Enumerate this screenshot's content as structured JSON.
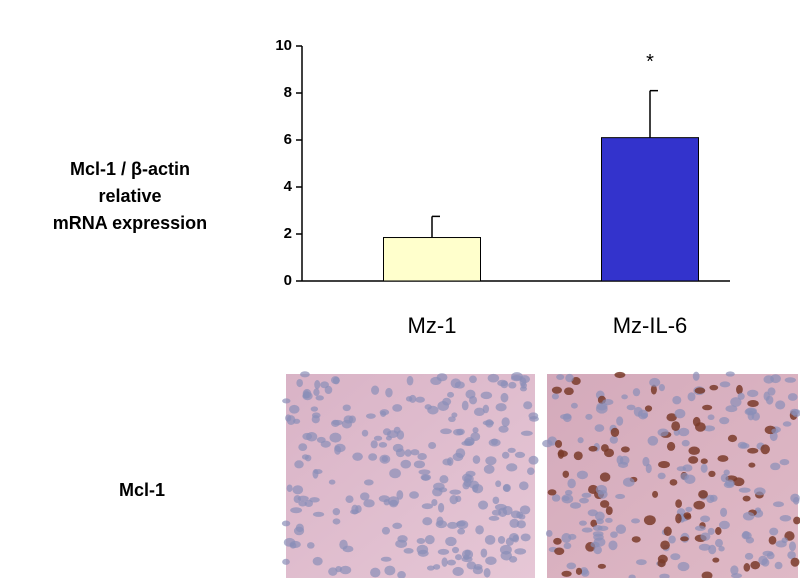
{
  "chart_data": {
    "type": "bar",
    "ylabel": [
      "Mcl-1 / β-actin",
      "relative",
      "mRNA expression"
    ],
    "categories": [
      "Mz-1",
      "Mz-IL-6"
    ],
    "values": [
      1.85,
      6.1
    ],
    "errors": [
      0.9,
      2.0
    ],
    "colors": [
      "#ffffcc",
      "#3333cc"
    ],
    "annotations": [
      null,
      "*"
    ],
    "ylim": [
      0,
      10
    ],
    "yticks": [
      0,
      2,
      4,
      6,
      8,
      10
    ],
    "image_row_label": "Mcl-1"
  }
}
